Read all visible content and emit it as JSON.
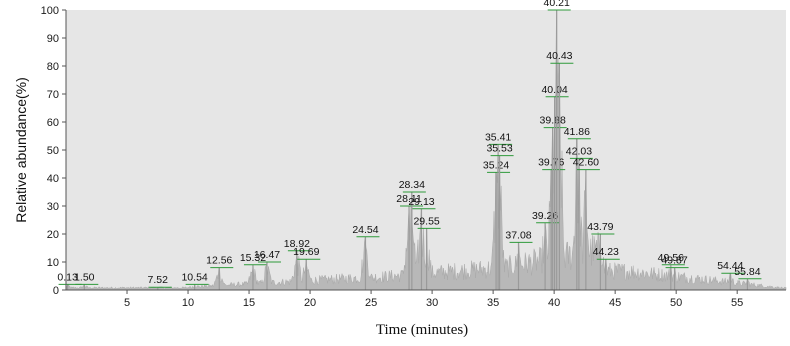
{
  "chart_data": {
    "type": "area",
    "title": "",
    "xlabel": "Time (minutes)",
    "ylabel": "Relative abundance(%)",
    "xlim": [
      0,
      59
    ],
    "ylim": [
      0,
      100
    ],
    "x_ticks": [
      5,
      10,
      15,
      20,
      25,
      30,
      35,
      40,
      45,
      50,
      55
    ],
    "y_ticks": [
      0,
      10,
      20,
      30,
      40,
      50,
      60,
      70,
      80,
      90,
      100
    ],
    "grid": false,
    "legend": "none",
    "colors": {
      "trace": "#b8b8b8",
      "plot_bg": "#e6e6e6",
      "peak_marker": "#2e9a3a",
      "axis": "#555555"
    },
    "peaks": [
      {
        "label": "0.13",
        "x": 0.13,
        "y": 2
      },
      {
        "label": "1.50",
        "x": 1.5,
        "y": 2
      },
      {
        "label": "7.52",
        "x": 7.52,
        "y": 1
      },
      {
        "label": "10.54",
        "x": 10.54,
        "y": 2
      },
      {
        "label": "12.56",
        "x": 12.56,
        "y": 8
      },
      {
        "label": "15.32",
        "x": 15.32,
        "y": 9
      },
      {
        "label": "16.47",
        "x": 16.47,
        "y": 10
      },
      {
        "label": "18.92",
        "x": 18.92,
        "y": 14
      },
      {
        "label": "19.69",
        "x": 19.69,
        "y": 11
      },
      {
        "label": "24.54",
        "x": 24.54,
        "y": 19
      },
      {
        "label": "28.11",
        "x": 28.11,
        "y": 30
      },
      {
        "label": "28.34",
        "x": 28.34,
        "y": 35
      },
      {
        "label": "29.13",
        "x": 29.13,
        "y": 29
      },
      {
        "label": "29.55",
        "x": 29.55,
        "y": 22
      },
      {
        "label": "35.24",
        "x": 35.24,
        "y": 42
      },
      {
        "label": "35.41",
        "x": 35.41,
        "y": 52
      },
      {
        "label": "35.53",
        "x": 35.53,
        "y": 48
      },
      {
        "label": "37.08",
        "x": 37.08,
        "y": 17
      },
      {
        "label": "39.26",
        "x": 39.26,
        "y": 24
      },
      {
        "label": "39.76",
        "x": 39.76,
        "y": 43
      },
      {
        "label": "39.88",
        "x": 39.88,
        "y": 58
      },
      {
        "label": "40.04",
        "x": 40.04,
        "y": 69
      },
      {
        "label": "40.21",
        "x": 40.21,
        "y": 100
      },
      {
        "label": "40.43",
        "x": 40.43,
        "y": 81
      },
      {
        "label": "41.86",
        "x": 41.86,
        "y": 54
      },
      {
        "label": "42.03",
        "x": 42.03,
        "y": 47
      },
      {
        "label": "42.60",
        "x": 42.6,
        "y": 43
      },
      {
        "label": "43.79",
        "x": 43.79,
        "y": 20
      },
      {
        "label": "44.23",
        "x": 44.23,
        "y": 11
      },
      {
        "label": "49.56",
        "x": 49.56,
        "y": 9
      },
      {
        "label": "49.87",
        "x": 49.87,
        "y": 8
      },
      {
        "label": "54.44",
        "x": 54.44,
        "y": 6
      },
      {
        "label": "55.84",
        "x": 55.84,
        "y": 4
      }
    ]
  }
}
